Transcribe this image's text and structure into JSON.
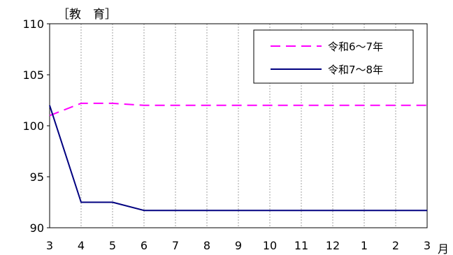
{
  "chart_data": {
    "type": "line",
    "title": "［教　育］",
    "x_unit": "月",
    "categories": [
      "3",
      "4",
      "5",
      "6",
      "7",
      "8",
      "9",
      "10",
      "11",
      "12",
      "1",
      "2",
      "3"
    ],
    "ylim": [
      90,
      110
    ],
    "yticks": [
      90,
      95,
      100,
      105,
      110
    ],
    "grid": "vertical dotted",
    "legend_position": "top-right",
    "series": [
      {
        "name": "令和6～7年",
        "color": "#ff00ff",
        "style": "dashed",
        "values": [
          101.0,
          102.2,
          102.2,
          102.0,
          102.0,
          102.0,
          102.0,
          102.0,
          102.0,
          102.0,
          102.0,
          102.0,
          102.0
        ]
      },
      {
        "name": "令和7～8年",
        "color": "#000080",
        "style": "solid",
        "values": [
          102.0,
          92.5,
          92.5,
          91.7,
          91.7,
          91.7,
          91.7,
          91.7,
          91.7,
          91.7,
          91.7,
          91.7,
          91.7
        ]
      }
    ]
  }
}
